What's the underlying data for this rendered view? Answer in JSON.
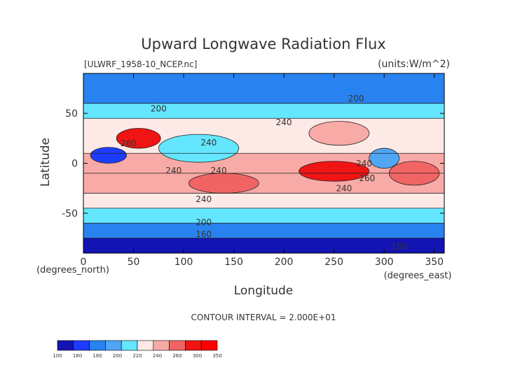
{
  "chart_data": {
    "type": "heatmap",
    "title": "Upward Longwave Radiation Flux",
    "subtitle_left": "[ULWRF_1958-10_NCEP.nc]",
    "subtitle_right": "(units:W/m^2)",
    "xlabel": "Longitude",
    "ylabel": "Latitude",
    "x_unit_label": "(degrees_east)",
    "y_unit_label": "(degrees_north)",
    "xlim": [
      0,
      360
    ],
    "ylim": [
      -90,
      90
    ],
    "x_ticks": [
      0,
      50,
      100,
      150,
      200,
      250,
      300,
      350
    ],
    "y_ticks": [
      -50,
      0,
      50
    ],
    "contour_interval_text": "CONTOUR INTERVAL = 2.000E+01",
    "contour_labels": [
      {
        "text": "200",
        "lon": 75,
        "lat": 52
      },
      {
        "text": "200",
        "lon": 272,
        "lat": 62
      },
      {
        "text": "240",
        "lon": 200,
        "lat": 38
      },
      {
        "text": "260",
        "lon": 45,
        "lat": 17
      },
      {
        "text": "240",
        "lon": 125,
        "lat": 18
      },
      {
        "text": "240",
        "lon": 90,
        "lat": -10
      },
      {
        "text": "240",
        "lon": 135,
        "lat": -10
      },
      {
        "text": "240",
        "lon": 280,
        "lat": -3
      },
      {
        "text": "260",
        "lon": 283,
        "lat": -18
      },
      {
        "text": "240",
        "lon": 260,
        "lat": -28
      },
      {
        "text": "240",
        "lon": 120,
        "lat": -39
      },
      {
        "text": "200",
        "lon": 120,
        "lat": -62
      },
      {
        "text": "160",
        "lon": 120,
        "lat": -74
      },
      {
        "text": "180",
        "lon": 315,
        "lat": -86
      }
    ],
    "colorbar": {
      "labels": [
        "100",
        "160",
        "180",
        "200",
        "220",
        "240",
        "260",
        "300",
        "350"
      ],
      "colors": [
        "#1414b4",
        "#1e3cff",
        "#2882f0",
        "#50a5f5",
        "#64e6ff",
        "#fde9e6",
        "#f8aaa6",
        "#f06464",
        "#f01414",
        "#ff0000"
      ]
    },
    "zones": [
      {
        "lat": [
          60,
          90
        ],
        "value": 180
      },
      {
        "lat": [
          45,
          60
        ],
        "value": 220
      },
      {
        "lat": [
          10,
          45
        ],
        "value": 240
      },
      {
        "lat": [
          -10,
          10
        ],
        "value": 260
      },
      {
        "lat": [
          -30,
          -10
        ],
        "value": 270
      },
      {
        "lat": [
          -45,
          -30
        ],
        "value": 240
      },
      {
        "lat": [
          -60,
          -45
        ],
        "value": 220
      },
      {
        "lat": [
          -75,
          -60
        ],
        "value": 180
      },
      {
        "lat": [
          -90,
          -75
        ],
        "value": 140
      }
    ],
    "blobs": [
      {
        "lon": 55,
        "lat": 25,
        "rlon": 22,
        "rlat": 10,
        "value": 300
      },
      {
        "lon": 25,
        "lat": 8,
        "rlon": 18,
        "rlat": 8,
        "value": 160
      },
      {
        "lon": 140,
        "lat": -20,
        "rlon": 35,
        "rlat": 10,
        "value": 290
      },
      {
        "lon": 250,
        "lat": -8,
        "rlon": 35,
        "rlat": 10,
        "value": 300
      },
      {
        "lon": 115,
        "lat": 15,
        "rlon": 40,
        "rlat": 14,
        "value": 220
      },
      {
        "lon": 300,
        "lat": 5,
        "rlon": 15,
        "rlat": 10,
        "value": 200
      },
      {
        "lon": 330,
        "lat": -10,
        "rlon": 25,
        "rlat": 12,
        "value": 280
      },
      {
        "lon": 255,
        "lat": 30,
        "rlon": 30,
        "rlat": 12,
        "value": 270
      }
    ]
  }
}
